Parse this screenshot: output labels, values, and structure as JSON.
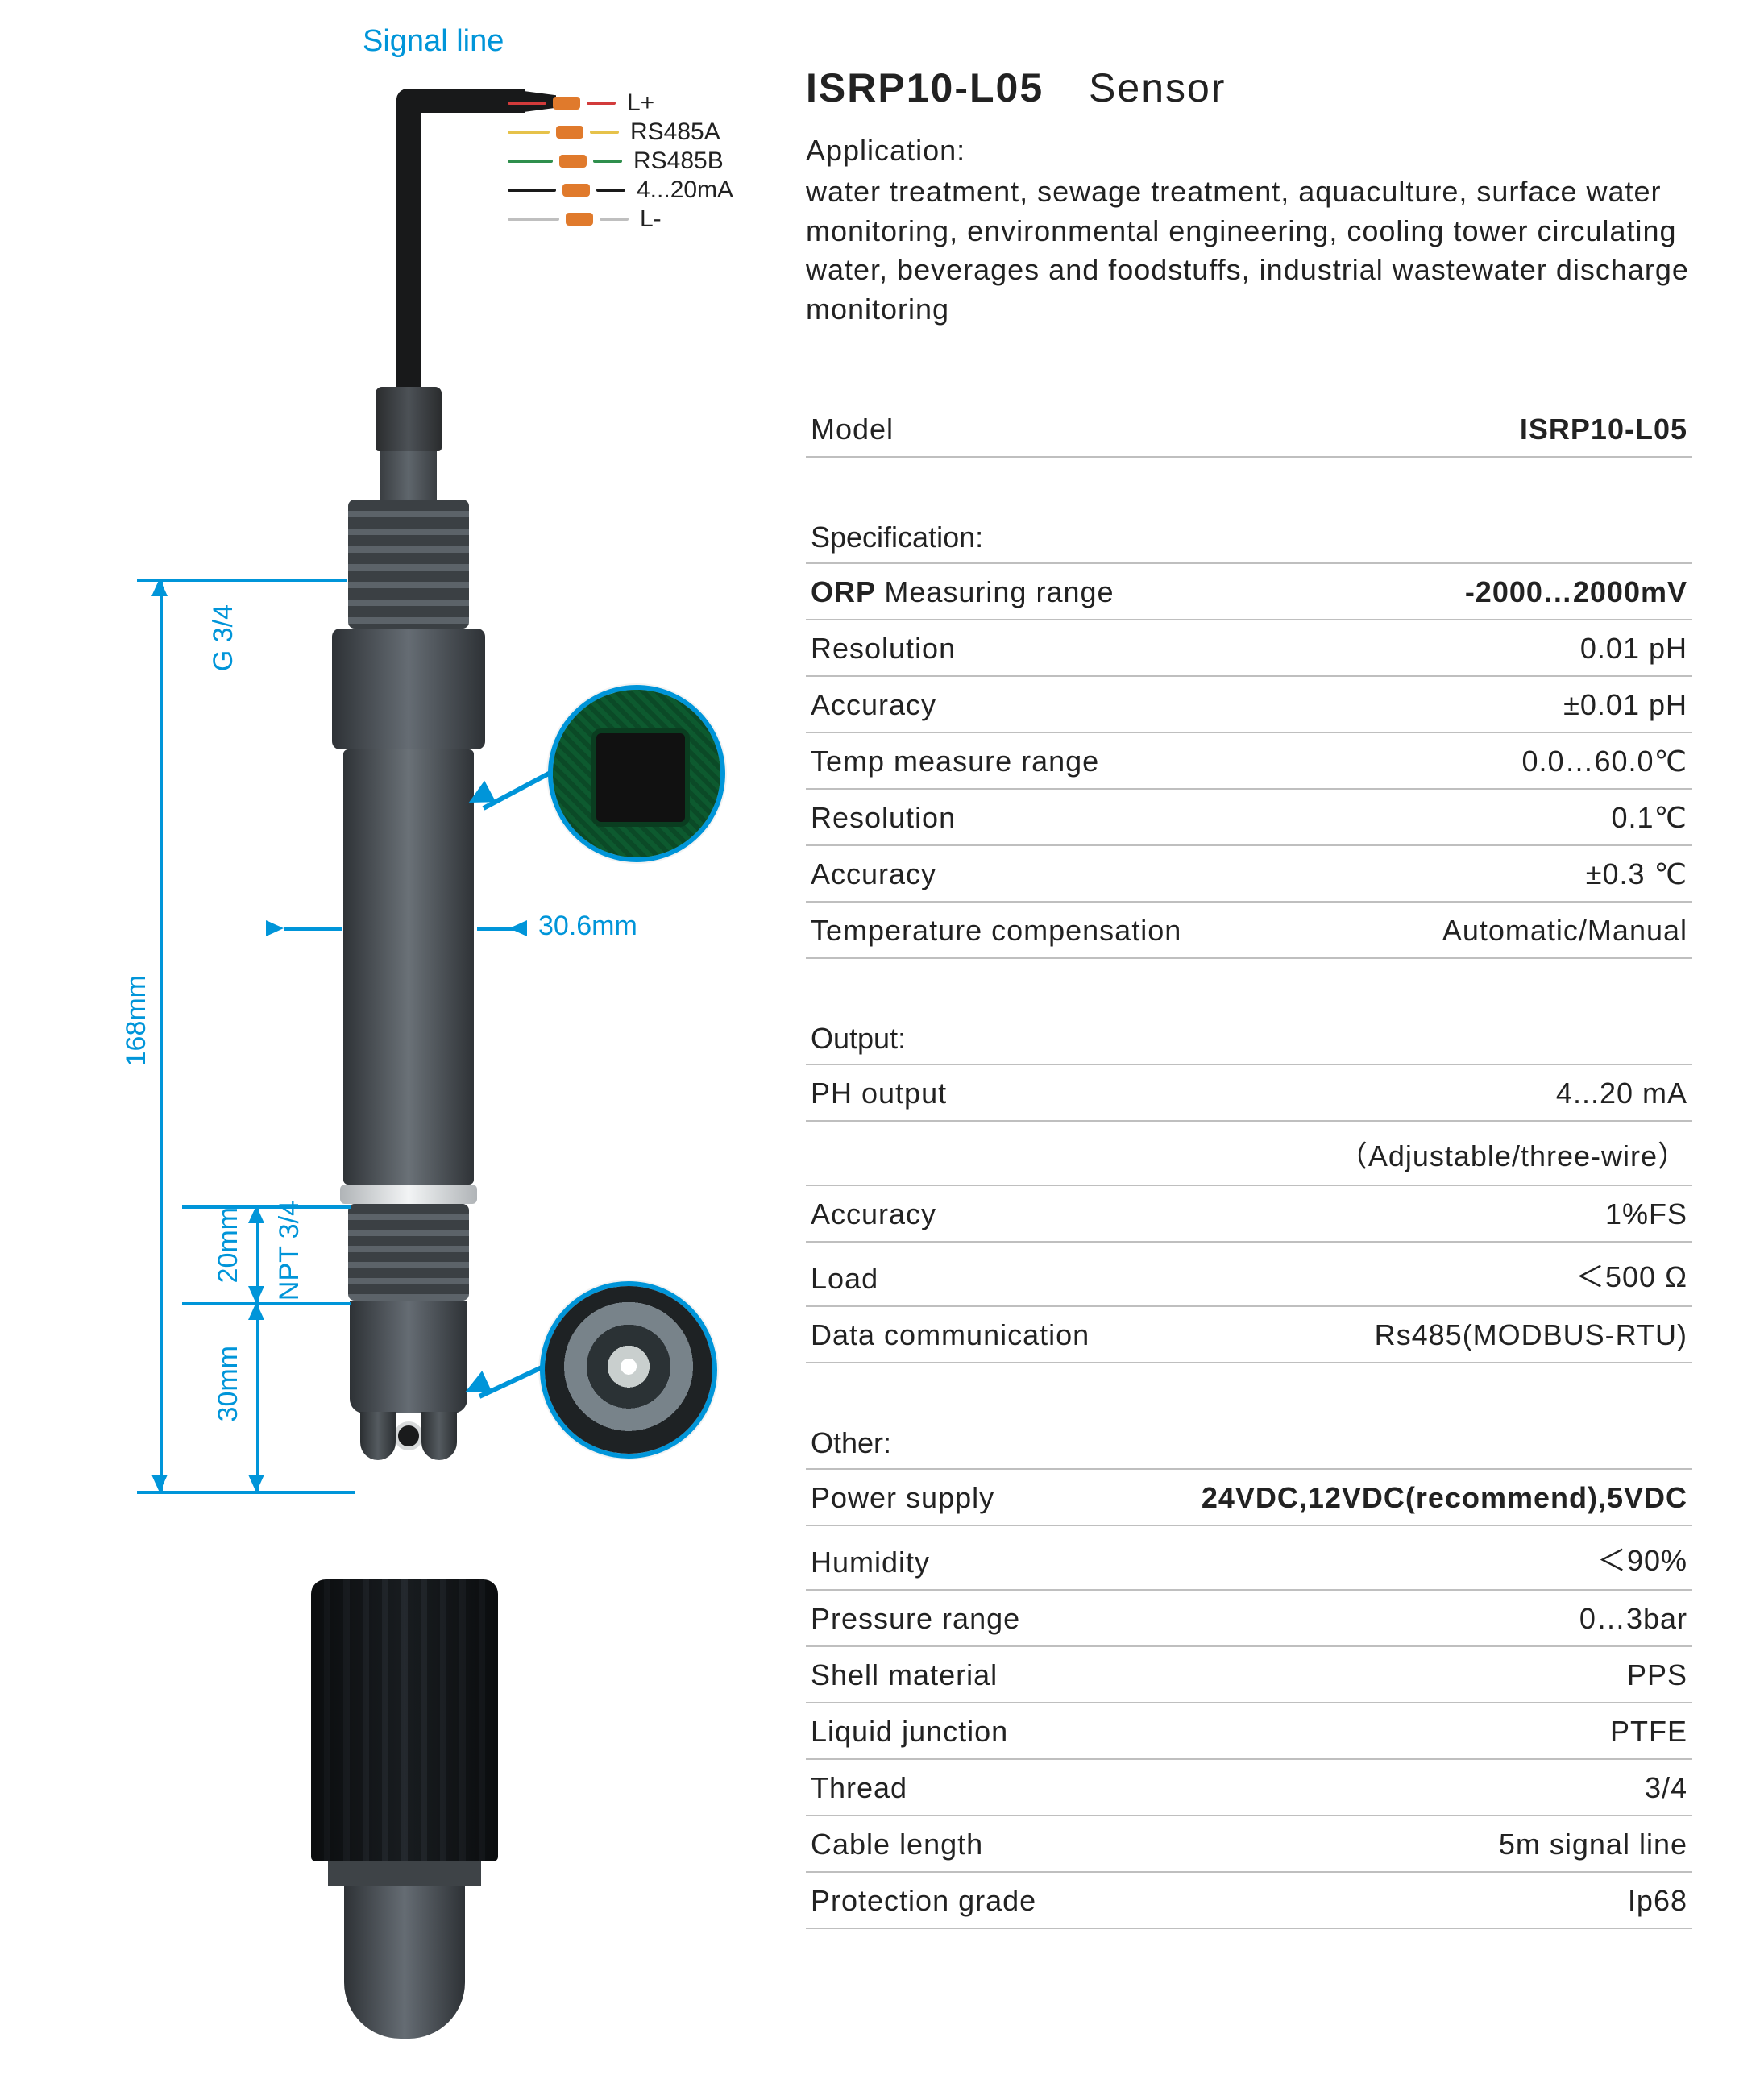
{
  "colors": {
    "accent": "#0095d9",
    "text": "#222222",
    "rule": "#bfbfbf",
    "sensor_dark": "#2f3337",
    "sensor_light": "#6a7177",
    "crimp_orange": "#e07a2c",
    "wire_red": "#d23b3b",
    "wire_yellow": "#e6c24a",
    "wire_green": "#2f8f4d",
    "wire_black": "#1a1a1a",
    "wire_grey": "#bfbfbf"
  },
  "diagram": {
    "signal_line_label": "Signal line",
    "wires": [
      {
        "label": "L+",
        "color": "#d23b3b"
      },
      {
        "label": "RS485A",
        "color": "#e6c24a"
      },
      {
        "label": "RS485B",
        "color": "#2f8f4d"
      },
      {
        "label": "4...20mA",
        "color": "#1a1a1a"
      },
      {
        "label": "L-",
        "color": "#bfbfbf"
      }
    ],
    "crimp_color": "#e07a2c",
    "dimensions": {
      "total_length": "168mm",
      "top_thread_label": "G 3/4",
      "mid_thread_height": "20mm",
      "mid_thread_label": "NPT 3/4",
      "tip_height": "30mm",
      "diameter": "30.6mm"
    }
  },
  "header": {
    "model": "ISRP10-L05",
    "title_suffix": "Sensor",
    "application_label": "Application:",
    "application_text": "water treatment, sewage treatment, aquaculture, surface water monitoring, environmental engineering, cooling tower circulating water, beverages and foodstuffs, industrial wastewater discharge monitoring"
  },
  "spec": {
    "model_row": {
      "l": "Model",
      "r": "ISRP10-L05",
      "rbold": true
    },
    "specification": {
      "label": "Specification:",
      "rows": [
        {
          "l_prefix": "ORP",
          "l": "Measuring range",
          "r": "-2000…2000mV",
          "lbold": true,
          "rbold": true
        },
        {
          "l": "Resolution",
          "r": "0.01 pH"
        },
        {
          "l": "Accuracy",
          "r": "±0.01 pH"
        },
        {
          "l": "Temp measure range",
          "r": "0.0…60.0℃"
        },
        {
          "l": "Resolution",
          "r": "0.1℃"
        },
        {
          "l": "Accuracy",
          "r": "±0.3 ℃"
        },
        {
          "l": "Temperature compensation",
          "r": "Automatic/Manual"
        }
      ]
    },
    "output": {
      "label": "Output:",
      "rows": [
        {
          "l": "PH output",
          "r": "4...20 mA"
        },
        {
          "l": "",
          "r": "（Adjustable/three-wire）"
        },
        {
          "l": "Accuracy",
          "r": "1%FS"
        },
        {
          "l": "Load",
          "r": "＜500 Ω"
        },
        {
          "l": "Data communication",
          "r": "Rs485(MODBUS-RTU)"
        }
      ]
    },
    "other": {
      "label": "Other:",
      "rows": [
        {
          "l": "Power supply",
          "r": "24VDC,12VDC(recommend),5VDC",
          "rbold": true
        },
        {
          "l": "Humidity",
          "r": "＜90%"
        },
        {
          "l": "Pressure range",
          "r": "0…3bar"
        },
        {
          "l": "Shell material",
          "r": "PPS"
        },
        {
          "l": "Liquid junction",
          "r": "PTFE"
        },
        {
          "l": "Thread",
          "r": "3/4"
        },
        {
          "l": "Cable length",
          "r": "5m signal line"
        },
        {
          "l": "Protection grade",
          "r": "Ip68"
        }
      ]
    }
  }
}
